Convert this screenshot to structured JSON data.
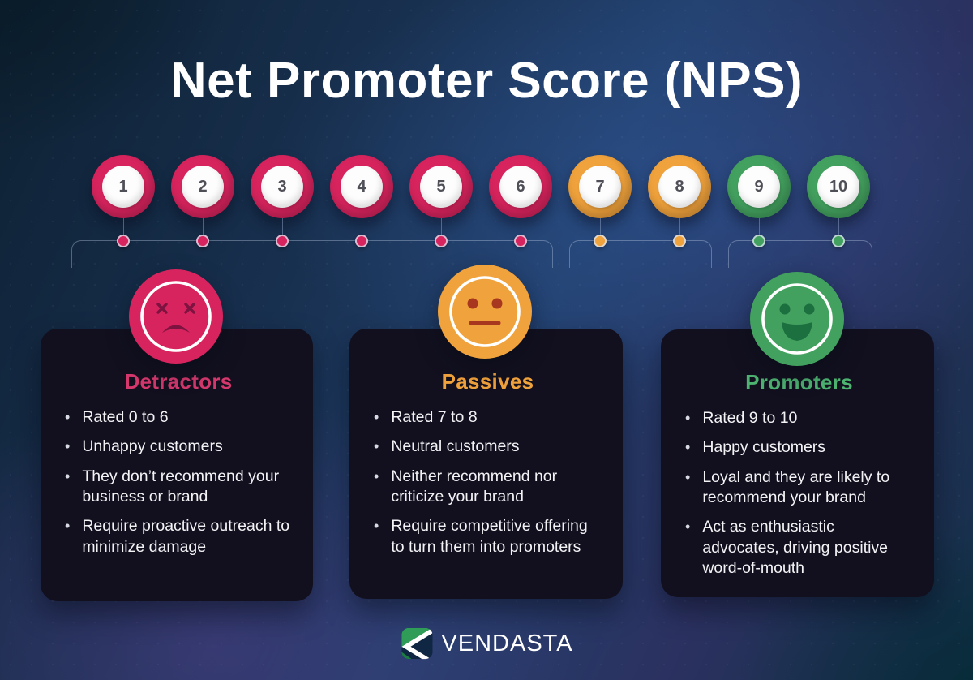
{
  "title": "Net Promoter Score (NPS)",
  "scale": {
    "items": [
      {
        "label": "1",
        "color": "#d8245e"
      },
      {
        "label": "2",
        "color": "#d8245e"
      },
      {
        "label": "3",
        "color": "#d8245e"
      },
      {
        "label": "4",
        "color": "#d8245e"
      },
      {
        "label": "5",
        "color": "#d8245e"
      },
      {
        "label": "6",
        "color": "#d8245e"
      },
      {
        "label": "7",
        "color": "#f0a23c"
      },
      {
        "label": "8",
        "color": "#f0a23c"
      },
      {
        "label": "9",
        "color": "#43a15f"
      },
      {
        "label": "10",
        "color": "#43a15f"
      }
    ]
  },
  "cards": [
    {
      "heading": "Detractors",
      "heading_color": "#d6386d",
      "face": "sad-face",
      "face_color": "#d8245e",
      "bullets": [
        "Rated 0 to 6",
        "Unhappy customers",
        "They don’t recommend your business or brand",
        "Require proactive outreach to minimize damage"
      ]
    },
    {
      "heading": "Passives",
      "heading_color": "#f0a23c",
      "face": "neutral-face",
      "face_color": "#f0a23c",
      "bullets": [
        "Rated 7 to 8",
        "Neutral customers",
        "Neither recommend nor criticize your brand",
        "Require competitive offering to turn them into promoters"
      ]
    },
    {
      "heading": "Promoters",
      "heading_color": "#4db371",
      "face": "happy-face",
      "face_color": "#43a15f",
      "bullets": [
        "Rated 9 to 10",
        "Happy customers",
        "Loyal and they are likely to recommend your brand",
        "Act as enthusiastic advocates, driving positive word-of-mouth"
      ]
    }
  ],
  "footer": {
    "brand": "VENDASTA"
  },
  "colors": {
    "detractor": "#d8245e",
    "passive": "#f0a23c",
    "promoter": "#43a15f",
    "card_background": "#12101e",
    "title_text": "#ffffff"
  }
}
